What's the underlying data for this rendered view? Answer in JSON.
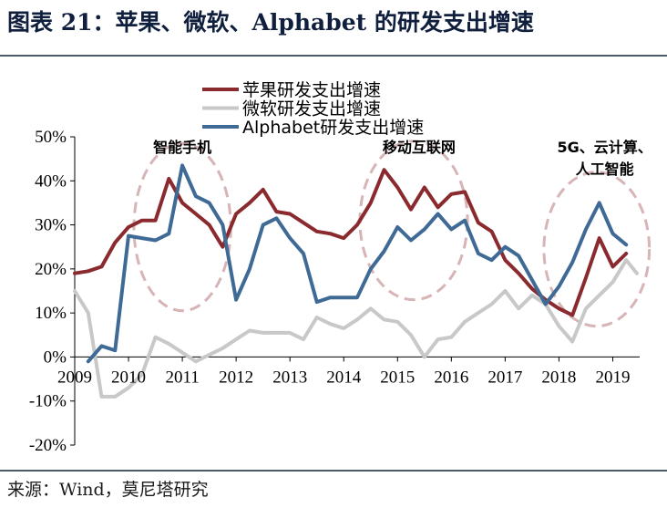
{
  "header": {
    "title": "图表 21：苹果、微软、Alphabet 的研发支出增速"
  },
  "footer": {
    "source": "来源：Wind，莫尼塔研究"
  },
  "colors": {
    "apple": "#8b2a2e",
    "microsoft": "#c8c8c8",
    "alphabet": "#3f6a96",
    "ellipse": "#d7b4b6"
  },
  "chart_data": {
    "type": "line",
    "title": "",
    "xlabel": "",
    "ylabel": "",
    "ylim": [
      -0.2,
      0.5
    ],
    "xlim": [
      2009,
      2019.5
    ],
    "y_ticks": [
      "50%",
      "40%",
      "30%",
      "20%",
      "10%",
      "0%",
      "-10%",
      "-20%"
    ],
    "x_ticks": [
      "2009",
      "2010",
      "2011",
      "2012",
      "2013",
      "2014",
      "2015",
      "2016",
      "2017",
      "2018",
      "2019"
    ],
    "legend_position": "top-center",
    "grid": false,
    "series": [
      {
        "name": "苹果研发支出增速",
        "color": "#8b2a2e",
        "points": [
          [
            2009.0,
            0.19
          ],
          [
            2009.25,
            0.195
          ],
          [
            2009.5,
            0.205
          ],
          [
            2009.75,
            0.26
          ],
          [
            2010.0,
            0.295
          ],
          [
            2010.25,
            0.31
          ],
          [
            2010.5,
            0.31
          ],
          [
            2010.75,
            0.405
          ],
          [
            2011.0,
            0.35
          ],
          [
            2011.25,
            0.325
          ],
          [
            2011.5,
            0.3
          ],
          [
            2011.75,
            0.25
          ],
          [
            2012.0,
            0.325
          ],
          [
            2012.25,
            0.35
          ],
          [
            2012.5,
            0.38
          ],
          [
            2012.75,
            0.33
          ],
          [
            2013.0,
            0.325
          ],
          [
            2013.25,
            0.305
          ],
          [
            2013.5,
            0.285
          ],
          [
            2013.75,
            0.28
          ],
          [
            2014.0,
            0.27
          ],
          [
            2014.25,
            0.3
          ],
          [
            2014.5,
            0.35
          ],
          [
            2014.75,
            0.425
          ],
          [
            2015.0,
            0.385
          ],
          [
            2015.25,
            0.335
          ],
          [
            2015.5,
            0.385
          ],
          [
            2015.75,
            0.34
          ],
          [
            2016.0,
            0.37
          ],
          [
            2016.25,
            0.375
          ],
          [
            2016.5,
            0.305
          ],
          [
            2016.75,
            0.285
          ],
          [
            2017.0,
            0.22
          ],
          [
            2017.25,
            0.19
          ],
          [
            2017.5,
            0.155
          ],
          [
            2017.75,
            0.13
          ],
          [
            2018.0,
            0.11
          ],
          [
            2018.25,
            0.095
          ],
          [
            2018.5,
            0.18
          ],
          [
            2018.75,
            0.27
          ],
          [
            2019.0,
            0.205
          ],
          [
            2019.25,
            0.235
          ]
        ]
      },
      {
        "name": "微软研发支出增速",
        "color": "#c8c8c8",
        "points": [
          [
            2009.0,
            0.15
          ],
          [
            2009.25,
            0.1
          ],
          [
            2009.5,
            -0.09
          ],
          [
            2009.75,
            -0.09
          ],
          [
            2010.0,
            -0.07
          ],
          [
            2010.25,
            -0.04
          ],
          [
            2010.5,
            0.045
          ],
          [
            2010.75,
            0.03
          ],
          [
            2011.0,
            0.01
          ],
          [
            2011.25,
            -0.01
          ],
          [
            2011.5,
            0.005
          ],
          [
            2011.75,
            0.02
          ],
          [
            2012.0,
            0.04
          ],
          [
            2012.25,
            0.06
          ],
          [
            2012.5,
            0.055
          ],
          [
            2012.75,
            0.055
          ],
          [
            2013.0,
            0.055
          ],
          [
            2013.25,
            0.04
          ],
          [
            2013.5,
            0.09
          ],
          [
            2013.75,
            0.075
          ],
          [
            2014.0,
            0.065
          ],
          [
            2014.25,
            0.085
          ],
          [
            2014.5,
            0.11
          ],
          [
            2014.75,
            0.085
          ],
          [
            2015.0,
            0.08
          ],
          [
            2015.25,
            0.05
          ],
          [
            2015.5,
            0.0
          ],
          [
            2015.75,
            0.04
          ],
          [
            2016.0,
            0.045
          ],
          [
            2016.25,
            0.08
          ],
          [
            2016.5,
            0.1
          ],
          [
            2016.75,
            0.12
          ],
          [
            2017.0,
            0.15
          ],
          [
            2017.25,
            0.11
          ],
          [
            2017.5,
            0.14
          ],
          [
            2017.75,
            0.12
          ],
          [
            2018.0,
            0.07
          ],
          [
            2018.25,
            0.035
          ],
          [
            2018.5,
            0.11
          ],
          [
            2018.75,
            0.14
          ],
          [
            2019.0,
            0.17
          ],
          [
            2019.25,
            0.22
          ],
          [
            2019.45,
            0.19
          ]
        ]
      },
      {
        "name": "Alphabet研发支出增速",
        "color": "#3f6a96",
        "points": [
          [
            2009.25,
            -0.01
          ],
          [
            2009.5,
            0.025
          ],
          [
            2009.75,
            0.015
          ],
          [
            2010.0,
            0.275
          ],
          [
            2010.25,
            0.27
          ],
          [
            2010.5,
            0.265
          ],
          [
            2010.75,
            0.28
          ],
          [
            2011.0,
            0.435
          ],
          [
            2011.25,
            0.365
          ],
          [
            2011.5,
            0.35
          ],
          [
            2011.75,
            0.3
          ],
          [
            2012.0,
            0.13
          ],
          [
            2012.25,
            0.2
          ],
          [
            2012.5,
            0.3
          ],
          [
            2012.75,
            0.315
          ],
          [
            2013.0,
            0.27
          ],
          [
            2013.25,
            0.235
          ],
          [
            2013.5,
            0.125
          ],
          [
            2013.75,
            0.135
          ],
          [
            2014.0,
            0.135
          ],
          [
            2014.25,
            0.135
          ],
          [
            2014.5,
            0.2
          ],
          [
            2014.75,
            0.24
          ],
          [
            2015.0,
            0.295
          ],
          [
            2015.25,
            0.265
          ],
          [
            2015.5,
            0.29
          ],
          [
            2015.75,
            0.325
          ],
          [
            2016.0,
            0.29
          ],
          [
            2016.25,
            0.31
          ],
          [
            2016.5,
            0.235
          ],
          [
            2016.75,
            0.22
          ],
          [
            2017.0,
            0.25
          ],
          [
            2017.25,
            0.23
          ],
          [
            2017.5,
            0.175
          ],
          [
            2017.75,
            0.12
          ],
          [
            2018.0,
            0.16
          ],
          [
            2018.25,
            0.215
          ],
          [
            2018.5,
            0.29
          ],
          [
            2018.75,
            0.35
          ],
          [
            2019.0,
            0.28
          ],
          [
            2019.25,
            0.255
          ]
        ]
      }
    ],
    "annotations": [
      {
        "lines": [
          "智能手机"
        ],
        "x": 2011.0,
        "y": 0.44
      },
      {
        "lines": [
          "移动互联网"
        ],
        "x": 2015.4,
        "y": 0.44
      },
      {
        "lines": [
          "5G、云计算、",
          "人工智能"
        ],
        "x": 2018.85,
        "y": 0.44
      }
    ],
    "highlight_ellipses": [
      {
        "cx": 2011.0,
        "cy": 0.295,
        "rx": 0.9,
        "ry": 0.19
      },
      {
        "cx": 2015.3,
        "cy": 0.31,
        "rx": 1.0,
        "ry": 0.18
      },
      {
        "cx": 2018.7,
        "cy": 0.245,
        "rx": 0.98,
        "ry": 0.175
      }
    ]
  }
}
